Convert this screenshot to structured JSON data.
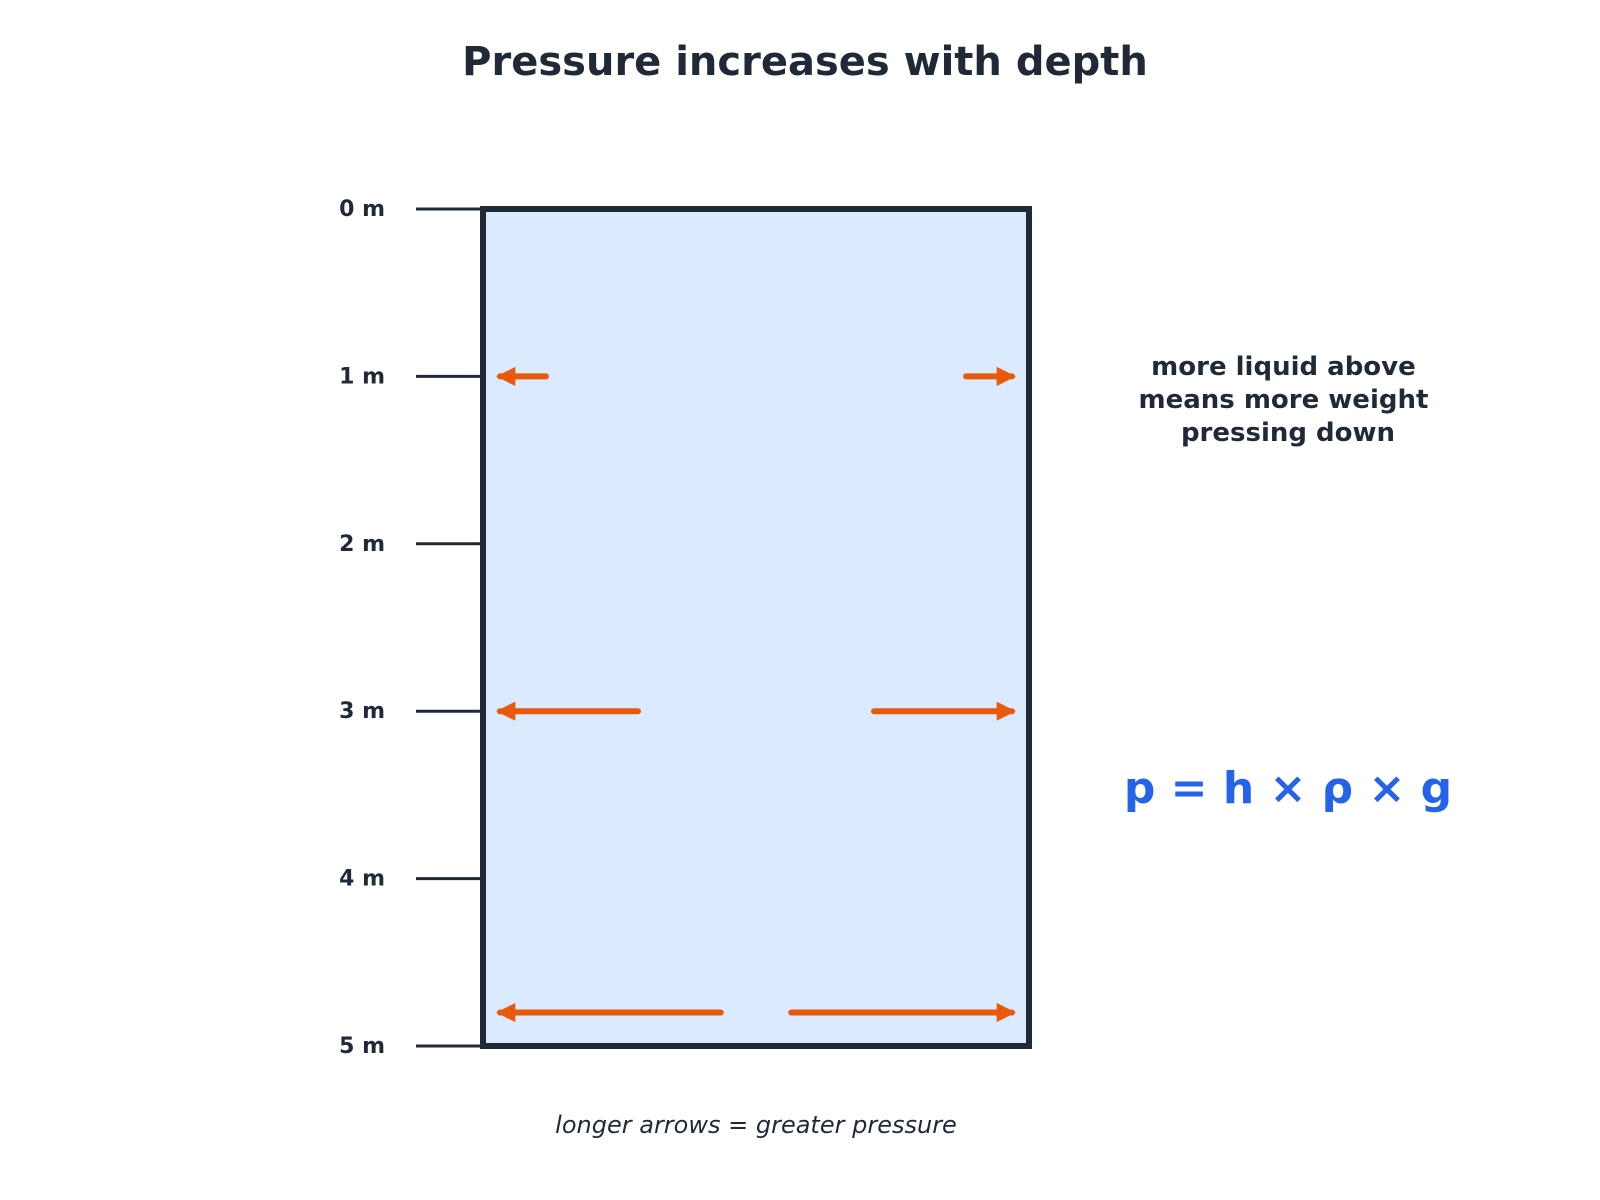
{
  "title": "Pressure increases with depth",
  "depth_axis": {
    "unit": "m",
    "max": 5,
    "ticks": [
      "0 m",
      "1 m",
      "2 m",
      "3 m",
      "4 m",
      "5 m"
    ]
  },
  "pressure_arrows": [
    {
      "depth_m": 1,
      "relative_pressure": 1
    },
    {
      "depth_m": 3,
      "relative_pressure": 3
    },
    {
      "depth_m": 4.8,
      "relative_pressure": 4.8
    }
  ],
  "note_lines": [
    "more liquid above",
    "means more weight",
    "pressing down"
  ],
  "formula": "p = h × ρ × g",
  "caption": "longer arrows = greater pressure",
  "colors": {
    "text": "#1f2937",
    "liquid_fill": "#dbeafe",
    "container_border": "#1f2937",
    "arrow": "#e8590c",
    "formula": "#2563eb"
  }
}
